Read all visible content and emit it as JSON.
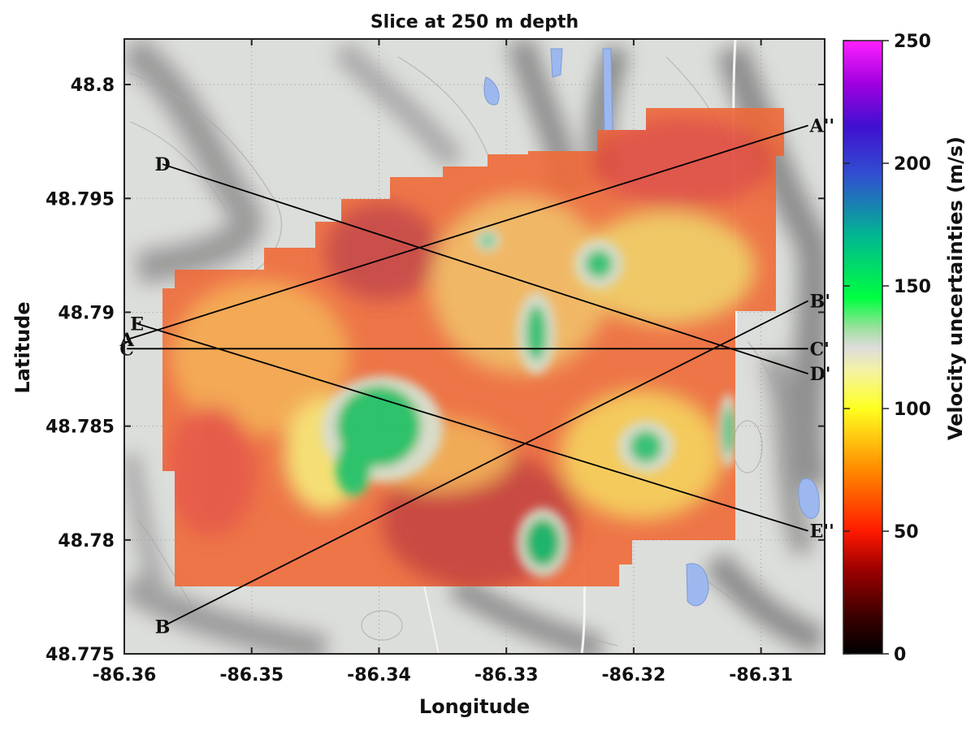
{
  "chart_data": {
    "type": "heatmap",
    "title": "Slice at 250 m depth",
    "xlabel": "Longitude",
    "ylabel": "Latitude",
    "xlim": [
      -86.36,
      -86.305
    ],
    "ylim": [
      48.775,
      48.802
    ],
    "x_ticks": [
      "-86.36",
      "-86.35",
      "-86.34",
      "-86.33",
      "-86.32",
      "-86.31"
    ],
    "x_tick_values": [
      -86.36,
      -86.35,
      -86.34,
      -86.33,
      -86.32,
      -86.31
    ],
    "y_ticks": [
      "48.8",
      "48.795",
      "48.79",
      "48.785",
      "48.78",
      "48.775"
    ],
    "y_tick_values": [
      48.8,
      48.795,
      48.79,
      48.785,
      48.78,
      48.775
    ],
    "colorbar": {
      "label": "Velocity uncertainties (m/s)",
      "min": 0,
      "max": 250,
      "ticks": [
        "0",
        "50",
        "100",
        "150",
        "200",
        "250"
      ],
      "tick_values": [
        0,
        50,
        100,
        150,
        200,
        250
      ]
    },
    "profiles": [
      {
        "start_label": "A",
        "end_label": "A''",
        "start": [
          -86.3598,
          48.7888
        ],
        "end": [
          -86.3063,
          48.7982
        ]
      },
      {
        "start_label": "B",
        "end_label": "B'",
        "start": [
          -86.357,
          48.7762
        ],
        "end": [
          -86.3063,
          48.7905
        ]
      },
      {
        "start_label": "C",
        "end_label": "C'",
        "start": [
          -86.3598,
          48.7884
        ],
        "end": [
          -86.3063,
          48.7884
        ]
      },
      {
        "start_label": "D",
        "end_label": "D'",
        "start": [
          -86.357,
          48.7965
        ],
        "end": [
          -86.3063,
          48.7873
        ]
      },
      {
        "start_label": "E",
        "end_label": "E''",
        "start": [
          -86.359,
          48.7895
        ],
        "end": [
          -86.3063,
          48.7804
        ]
      }
    ],
    "low_uncertainty_zones": [
      {
        "lon": -86.34,
        "lat": 48.7853,
        "value": 150
      },
      {
        "lon": -86.327,
        "lat": 48.7805,
        "value": 150
      },
      {
        "lon": -86.328,
        "lat": 48.789,
        "value": 145
      },
      {
        "lon": -86.3227,
        "lat": 48.7922,
        "value": 140
      },
      {
        "lon": -86.319,
        "lat": 48.7843,
        "value": 140
      },
      {
        "lon": -86.333,
        "lat": 48.793,
        "value": 130
      }
    ],
    "background_value": 60
  }
}
